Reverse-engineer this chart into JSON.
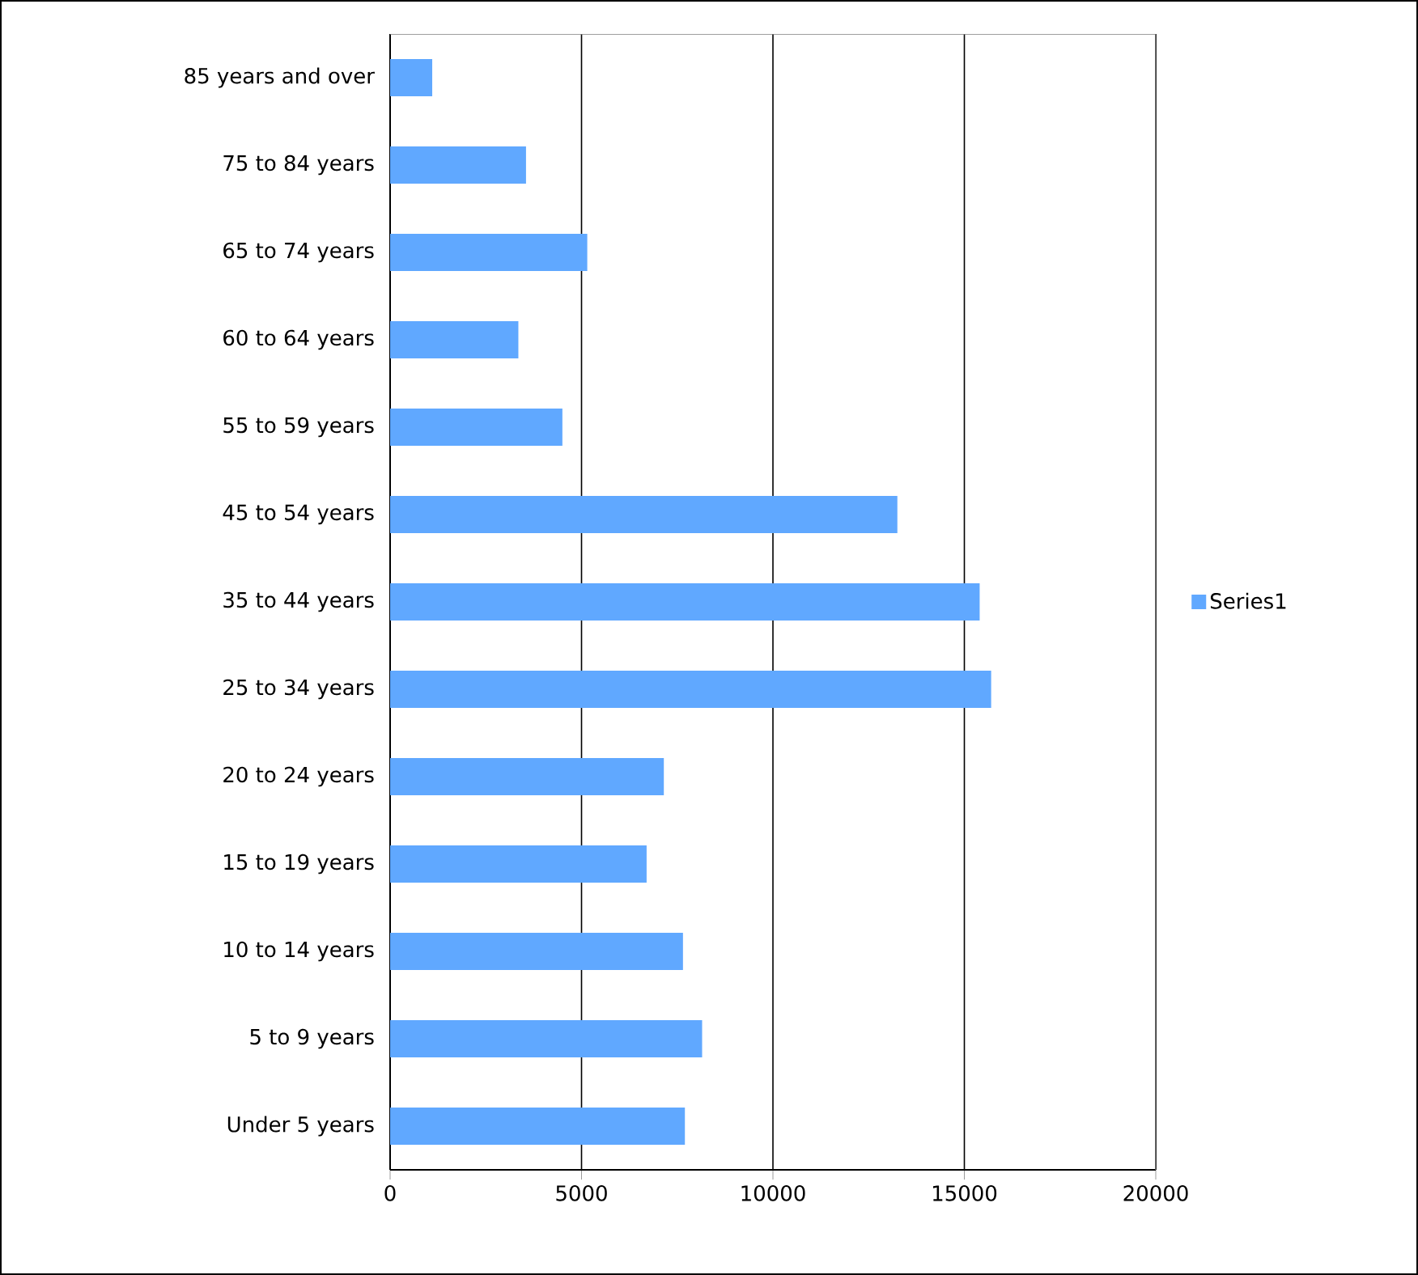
{
  "chart_data": {
    "type": "bar",
    "orientation": "horizontal",
    "categories": [
      "85 years and over",
      "75 to 84 years",
      "65 to 74 years",
      "60 to 64 years",
      "55 to 59 years",
      "45 to 54 years",
      "35 to 44 years",
      "25 to 34 years",
      "20 to 24 years",
      "15 to 19 years",
      "10 to 14 years",
      "5 to 9 years",
      "Under 5 years"
    ],
    "series": [
      {
        "name": "Series1",
        "color": "#60a8ff",
        "values": [
          1100,
          3550,
          5150,
          3350,
          4500,
          13250,
          15400,
          15700,
          7150,
          6700,
          7650,
          8150,
          7700
        ]
      }
    ],
    "xlim": [
      0,
      20000
    ],
    "xticks": [
      0,
      5000,
      10000,
      15000,
      20000
    ],
    "grid": "x",
    "legend": "right"
  }
}
